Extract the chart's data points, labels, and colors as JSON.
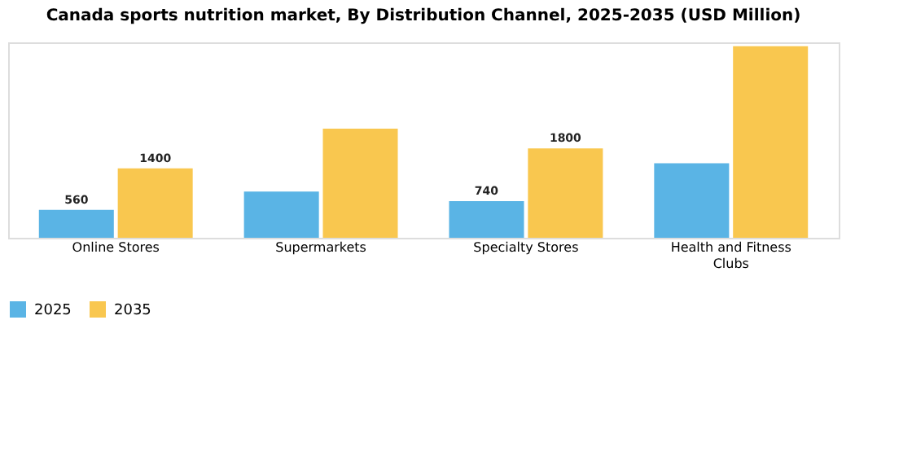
{
  "chart_data": {
    "type": "bar",
    "title": "Canada sports nutrition market, By Distribution Channel, 2025-2035 (USD Million)",
    "categories": [
      "Online Stores",
      "Supermarkets",
      "Specialty Stores",
      "Health and Fitness Clubs"
    ],
    "series": [
      {
        "name": "2025",
        "color": "#5ab4e5",
        "values": [
          560,
          930,
          740,
          1500
        ],
        "value_labels": [
          "560",
          null,
          "740",
          null
        ]
      },
      {
        "name": "2035",
        "color": "#f9c74f",
        "values": [
          1400,
          2200,
          1800,
          3860
        ],
        "value_labels": [
          "1400",
          null,
          "1800",
          null
        ]
      }
    ],
    "legend": "bottom",
    "grid": false
  }
}
